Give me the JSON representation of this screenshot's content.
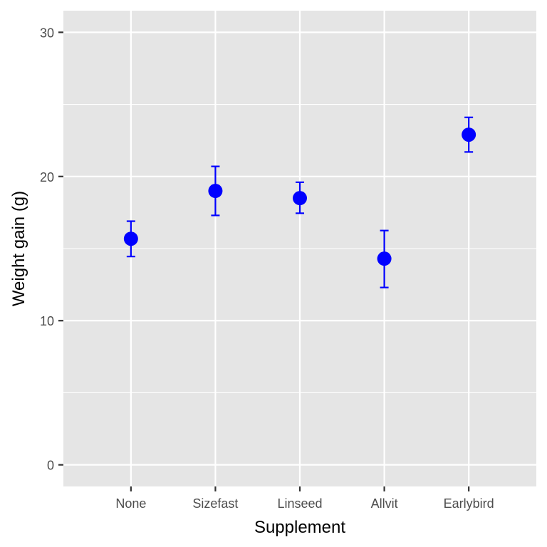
{
  "chart_data": {
    "type": "scatter",
    "subtype": "point-with-error-bars",
    "title": "",
    "xlabel": "Supplement",
    "ylabel": "Weight gain (g)",
    "categories": [
      "None",
      "Sizefast",
      "Linseed",
      "Allvit",
      "Earlybird"
    ],
    "series": [
      {
        "values": [
          15.68,
          19.0,
          18.5,
          14.3,
          22.9
        ],
        "lower": [
          14.45,
          17.3,
          17.45,
          12.3,
          21.7
        ],
        "upper": [
          16.9,
          20.7,
          19.6,
          16.25,
          24.1
        ],
        "color": "#0000ff"
      }
    ],
    "ylim": [
      -1.5,
      31.5
    ],
    "yticks": [
      0,
      10,
      20,
      30
    ],
    "yticks_minor": [
      5,
      15,
      25
    ],
    "grid": true,
    "legend": "none",
    "panel_color": "#e5e5e5",
    "grid_color": "#ffffff"
  }
}
